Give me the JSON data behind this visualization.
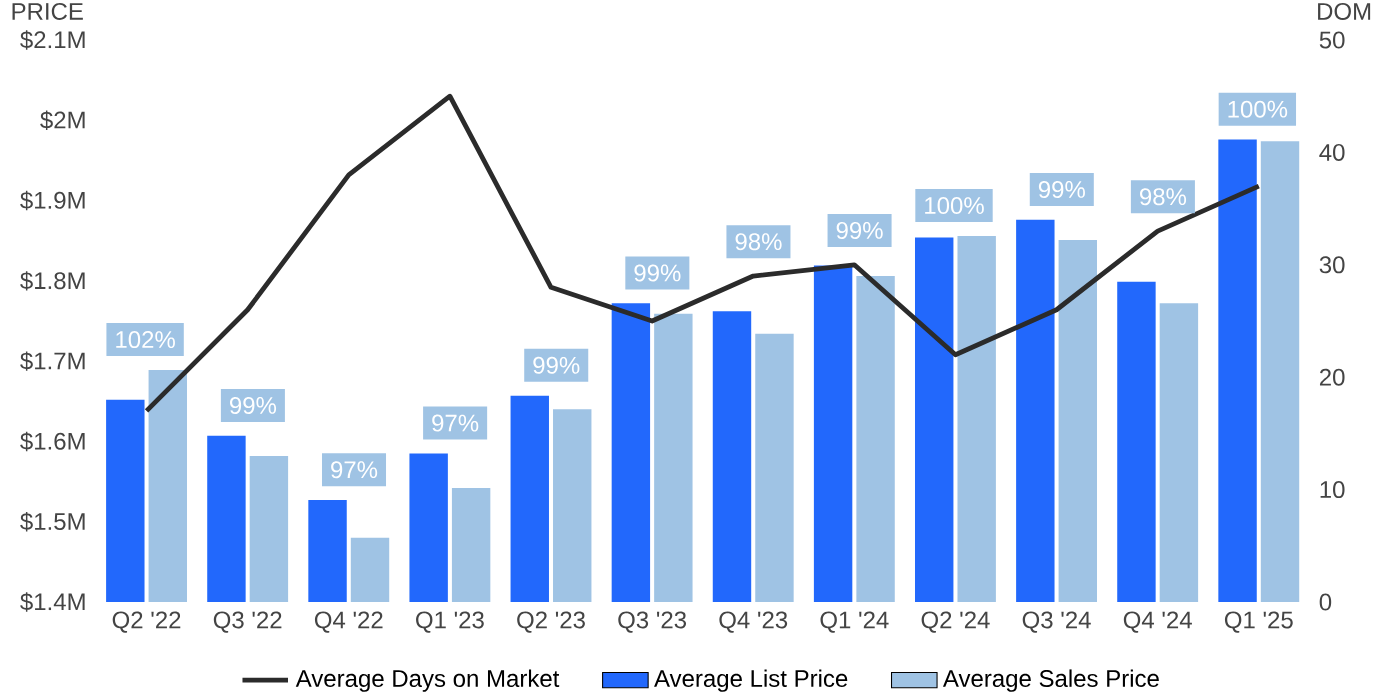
{
  "chart_data": {
    "type": "bar",
    "ylabel": "PRICE",
    "y2label": "DOM",
    "categories": [
      "Q2 '22",
      "Q3 '22",
      "Q4 '22",
      "Q1 '23",
      "Q2 '23",
      "Q3 '23",
      "Q4 '23",
      "Q1 '24",
      "Q2 '24",
      "Q3 '24",
      "Q4 '24",
      "Q1 '25"
    ],
    "series": [
      {
        "name": "Average Days on Market",
        "type": "line",
        "axis": "y2",
        "color": "#2b2b2b",
        "values": [
          17,
          26,
          38,
          45,
          28,
          25,
          29,
          30,
          22,
          26,
          33,
          37
        ]
      },
      {
        "name": "Average List Price",
        "color": "#2268fc",
        "values": [
          1.652,
          1.607,
          1.527,
          1.585,
          1.657,
          1.772,
          1.762,
          1.819,
          1.854,
          1.876,
          1.799,
          1.976
        ]
      },
      {
        "name": "Average Sales Price",
        "color": "#9fc3e4",
        "values": [
          1.689,
          1.582,
          1.48,
          1.542,
          1.64,
          1.759,
          1.734,
          1.806,
          1.856,
          1.851,
          1.772,
          1.974
        ]
      }
    ],
    "annotations": [
      "102%",
      "99%",
      "97%",
      "97%",
      "99%",
      "99%",
      "98%",
      "99%",
      "100%",
      "99%",
      "98%",
      "100%"
    ],
    "ylim": [
      1.4,
      2.1
    ],
    "yticks": [
      {
        "value": 1.4,
        "label": "$1.4M"
      },
      {
        "value": 1.5,
        "label": "$1.5M"
      },
      {
        "value": 1.6,
        "label": "$1.6M"
      },
      {
        "value": 1.7,
        "label": "$1.7M"
      },
      {
        "value": 1.8,
        "label": "$1.8M"
      },
      {
        "value": 1.9,
        "label": "$1.9M"
      },
      {
        "value": 2.0,
        "label": "$2M"
      },
      {
        "value": 2.1,
        "label": "$2.1M"
      }
    ],
    "y2lim": [
      0,
      50
    ],
    "y2ticks": [
      0,
      10,
      20,
      30,
      40,
      50
    ],
    "legend": "bottom",
    "marker": "none",
    "line_style": "solid"
  }
}
